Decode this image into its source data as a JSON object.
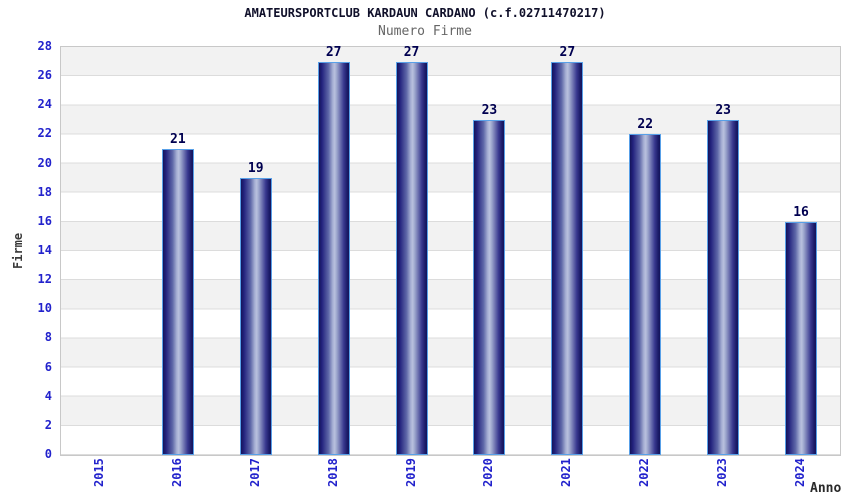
{
  "header": {
    "title": "AMATEURSPORTCLUB KARDAUN CARDANO (c.f.02711470217)",
    "subtitle": "Numero Firme"
  },
  "chart_data": {
    "type": "bar",
    "title": "AMATEURSPORTCLUB KARDAUN CARDANO (c.f.02711470217)",
    "subtitle": "Numero Firme",
    "xlabel": "Anno",
    "ylabel": "Firme",
    "categories": [
      "2015",
      "2016",
      "2017",
      "2018",
      "2019",
      "2020",
      "2021",
      "2022",
      "2023",
      "2024"
    ],
    "values": [
      0,
      21,
      19,
      27,
      27,
      23,
      27,
      22,
      23,
      16
    ],
    "ylim": [
      0,
      28
    ],
    "ytick_step": 2,
    "grid": "horizontal-bands-alternating",
    "legend": "none",
    "colors": {
      "bar_dark": "#14145a",
      "bar_highlight": "#b9c1de",
      "bar_border": "#58a0e8",
      "tick_label": "#2222cc",
      "value_label": "#000050",
      "axis_title": "#3a3a3a",
      "title_text": "#10102a",
      "subtitle_text": "#666666",
      "band_gray": "#f2f2f2",
      "band_white": "#ffffff",
      "plot_border": "#c8c8c8"
    }
  }
}
